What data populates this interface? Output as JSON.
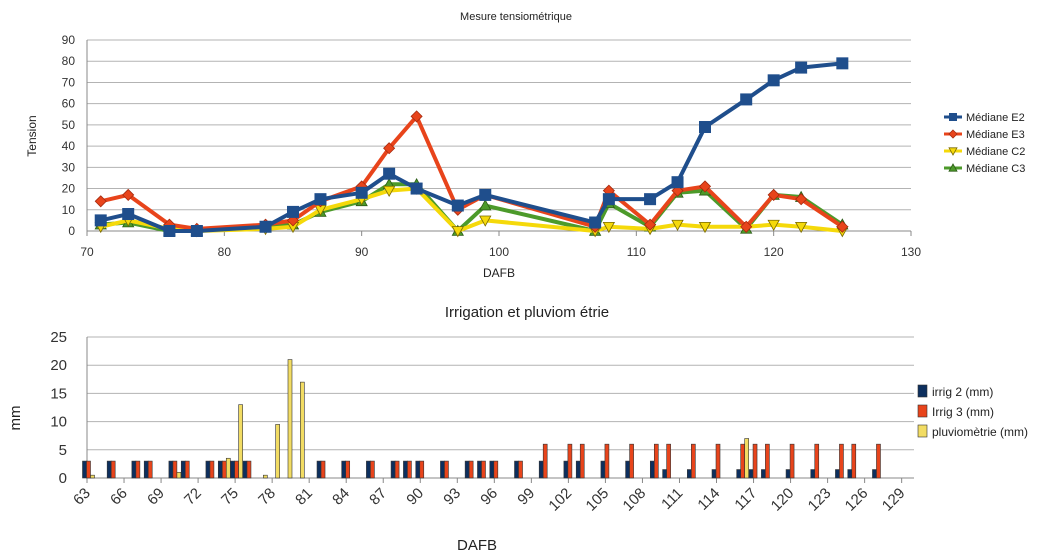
{
  "chart_data": [
    {
      "type": "line",
      "title": "Mesure tensiométrique",
      "xlabel": "DAFB",
      "ylabel": "Tension",
      "xlim": [
        70,
        130
      ],
      "ylim": [
        0,
        90
      ],
      "xticks": [
        70,
        80,
        90,
        100,
        110,
        120,
        130
      ],
      "yticks": [
        0,
        10,
        20,
        30,
        40,
        50,
        60,
        70,
        80,
        90
      ],
      "grid": true,
      "legend": "right",
      "series": [
        {
          "name": "Médiane E2",
          "color": "#1f4e8c",
          "marker": "square",
          "points": [
            [
              71,
              5
            ],
            [
              73,
              8
            ],
            [
              76,
              0
            ],
            [
              78,
              0
            ],
            [
              83,
              2
            ],
            [
              85,
              9
            ],
            [
              87,
              15
            ],
            [
              90,
              18
            ],
            [
              92,
              27
            ],
            [
              94,
              20
            ],
            [
              97,
              12
            ],
            [
              99,
              17
            ],
            [
              107,
              4
            ],
            [
              108,
              15
            ],
            [
              111,
              15
            ],
            [
              113,
              23
            ],
            [
              115,
              49
            ],
            [
              118,
              62
            ],
            [
              120,
              71
            ],
            [
              122,
              77
            ],
            [
              125,
              79
            ]
          ]
        },
        {
          "name": "Médiane E3",
          "color": "#e8441b",
          "marker": "diamond",
          "points": [
            [
              71,
              14
            ],
            [
              73,
              17
            ],
            [
              76,
              3
            ],
            [
              78,
              1
            ],
            [
              83,
              3
            ],
            [
              85,
              5
            ],
            [
              87,
              14
            ],
            [
              90,
              21
            ],
            [
              92,
              39
            ],
            [
              94,
              54
            ],
            [
              97,
              10
            ],
            [
              99,
              17
            ],
            [
              107,
              2
            ],
            [
              108,
              19
            ],
            [
              111,
              3
            ],
            [
              113,
              19
            ],
            [
              115,
              21
            ],
            [
              118,
              2
            ],
            [
              120,
              17
            ],
            [
              122,
              15
            ],
            [
              125,
              2
            ]
          ]
        },
        {
          "name": "Médiane C2",
          "color": "#f5d90a",
          "marker": "triangle-down",
          "points": [
            [
              71,
              2
            ],
            [
              73,
              5
            ],
            [
              76,
              1
            ],
            [
              78,
              0
            ],
            [
              83,
              1
            ],
            [
              85,
              2
            ],
            [
              87,
              10
            ],
            [
              90,
              15
            ],
            [
              92,
              19
            ],
            [
              94,
              20
            ],
            [
              97,
              0
            ],
            [
              99,
              5
            ],
            [
              107,
              0
            ],
            [
              108,
              2
            ],
            [
              111,
              1
            ],
            [
              113,
              3
            ],
            [
              115,
              2
            ],
            [
              118,
              2
            ],
            [
              120,
              3
            ],
            [
              122,
              2
            ],
            [
              125,
              0
            ]
          ]
        },
        {
          "name": "Médiane C3",
          "color": "#4c9a2a",
          "marker": "triangle-up",
          "points": [
            [
              71,
              3
            ],
            [
              73,
              4
            ],
            [
              76,
              0
            ],
            [
              78,
              0
            ],
            [
              83,
              2
            ],
            [
              85,
              3
            ],
            [
              87,
              9
            ],
            [
              90,
              14
            ],
            [
              92,
              22
            ],
            [
              94,
              22
            ],
            [
              97,
              0
            ],
            [
              99,
              12
            ],
            [
              107,
              0
            ],
            [
              108,
              13
            ],
            [
              111,
              2
            ],
            [
              113,
              18
            ],
            [
              115,
              19
            ],
            [
              118,
              1
            ],
            [
              120,
              17
            ],
            [
              122,
              16
            ],
            [
              125,
              3
            ]
          ]
        }
      ]
    },
    {
      "type": "bar",
      "title": "Irrigation et pluviom étrie",
      "xlabel": "DAFB",
      "ylabel": "mm",
      "xlim": [
        63,
        130
      ],
      "ylim": [
        0,
        25
      ],
      "xticks": [
        "63",
        "66",
        "69",
        "72",
        "75",
        "78",
        "81",
        "84",
        "87",
        "90",
        "93",
        "96",
        "99",
        "102",
        "105",
        "108",
        "111",
        "114",
        "117",
        "120",
        "123",
        "126",
        "129"
      ],
      "yticks": [
        0,
        5,
        10,
        15,
        20,
        25
      ],
      "grid": true,
      "legend": "right",
      "series": [
        {
          "name": "irrig 2 (mm)",
          "color": "#0d2f5e",
          "points": [
            [
              63,
              3
            ],
            [
              65,
              3
            ],
            [
              67,
              3
            ],
            [
              68,
              3
            ],
            [
              70,
              3
            ],
            [
              71,
              3
            ],
            [
              73,
              3
            ],
            [
              74,
              3
            ],
            [
              75,
              3
            ],
            [
              76,
              3
            ],
            [
              82,
              3
            ],
            [
              84,
              3
            ],
            [
              86,
              3
            ],
            [
              88,
              3
            ],
            [
              89,
              3
            ],
            [
              90,
              3
            ],
            [
              92,
              3
            ],
            [
              94,
              3
            ],
            [
              95,
              3
            ],
            [
              96,
              3
            ],
            [
              98,
              3
            ],
            [
              100,
              3
            ],
            [
              102,
              3
            ],
            [
              103,
              3
            ],
            [
              105,
              3
            ],
            [
              107,
              3
            ],
            [
              109,
              3
            ],
            [
              110,
              1.5
            ],
            [
              112,
              1.5
            ],
            [
              114,
              1.5
            ],
            [
              116,
              1.5
            ],
            [
              117,
              1.5
            ],
            [
              118,
              1.5
            ],
            [
              120,
              1.5
            ],
            [
              122,
              1.5
            ],
            [
              124,
              1.5
            ],
            [
              125,
              1.5
            ],
            [
              127,
              1.5
            ]
          ]
        },
        {
          "name": "Irrig 3 (mm)",
          "color": "#e8441b",
          "points": [
            [
              63,
              3
            ],
            [
              65,
              3
            ],
            [
              67,
              3
            ],
            [
              68,
              3
            ],
            [
              70,
              3
            ],
            [
              71,
              3
            ],
            [
              73,
              3
            ],
            [
              74,
              3
            ],
            [
              75,
              3
            ],
            [
              76,
              3
            ],
            [
              82,
              3
            ],
            [
              84,
              3
            ],
            [
              86,
              3
            ],
            [
              88,
              3
            ],
            [
              89,
              3
            ],
            [
              90,
              3
            ],
            [
              92,
              3
            ],
            [
              94,
              3
            ],
            [
              95,
              3
            ],
            [
              96,
              3
            ],
            [
              98,
              3
            ],
            [
              100,
              6
            ],
            [
              102,
              6
            ],
            [
              103,
              6
            ],
            [
              105,
              6
            ],
            [
              107,
              6
            ],
            [
              109,
              6
            ],
            [
              110,
              6
            ],
            [
              112,
              6
            ],
            [
              114,
              6
            ],
            [
              116,
              6
            ],
            [
              117,
              6
            ],
            [
              118,
              6
            ],
            [
              120,
              6
            ],
            [
              122,
              6
            ],
            [
              124,
              6
            ],
            [
              125,
              6
            ],
            [
              127,
              6
            ]
          ]
        },
        {
          "name": "pluviomètrie (mm)",
          "color": "#f2dc63",
          "points": [
            [
              63,
              0.5
            ],
            [
              70,
              1
            ],
            [
              74,
              3.5
            ],
            [
              75,
              13
            ],
            [
              77,
              0.5
            ],
            [
              78,
              9.5
            ],
            [
              79,
              21
            ],
            [
              80,
              17
            ],
            [
              116,
              7
            ]
          ]
        }
      ]
    }
  ]
}
